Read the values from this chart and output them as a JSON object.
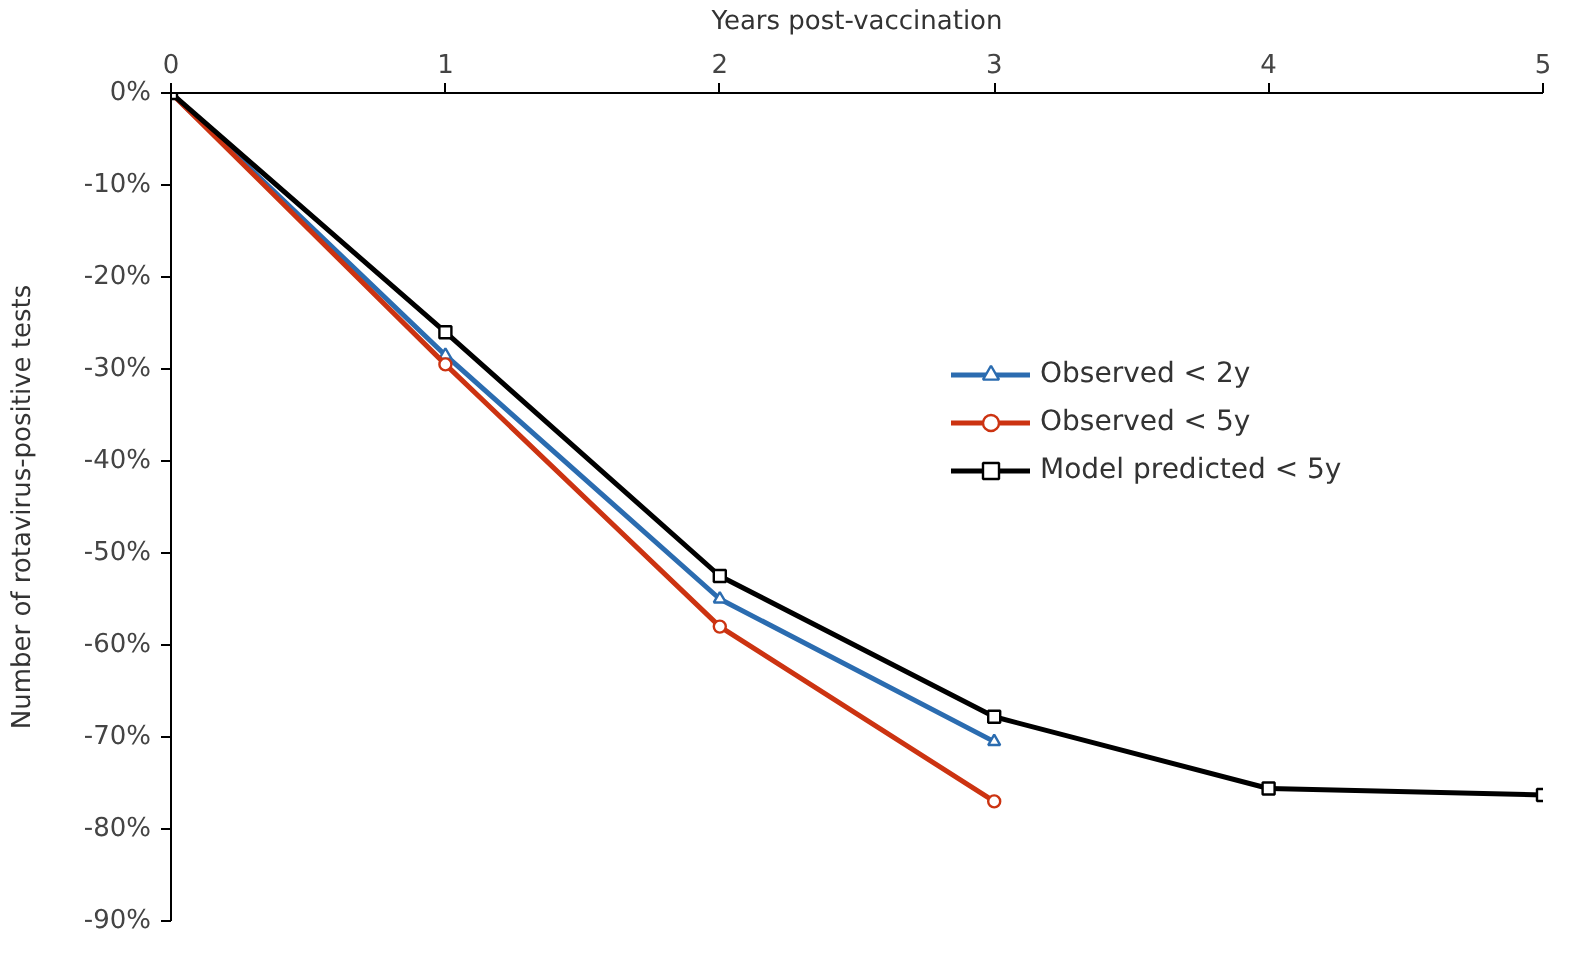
{
  "chart_data": {
    "type": "line",
    "xlabel": "Years post-vaccination",
    "ylabel": "Number of rotavirus-positive tests",
    "xlim": [
      0,
      5
    ],
    "xticks": [
      0,
      1,
      2,
      3,
      4,
      5
    ],
    "ylim": [
      -90,
      0
    ],
    "yticks": [
      {
        "value": 0,
        "label": "0%"
      },
      {
        "value": -10,
        "label": "-10%"
      },
      {
        "value": -20,
        "label": "-20%"
      },
      {
        "value": -30,
        "label": "-30%"
      },
      {
        "value": -40,
        "label": "-40%"
      },
      {
        "value": -50,
        "label": "-50%"
      },
      {
        "value": -60,
        "label": "-60%"
      },
      {
        "value": -70,
        "label": "-70%"
      },
      {
        "value": -80,
        "label": "-80%"
      },
      {
        "value": -90,
        "label": "-90%"
      }
    ],
    "grid": false,
    "legend": "top right",
    "line_style": "solid",
    "series": [
      {
        "name": "Observed < 2y",
        "color": "#2b6cb0",
        "marker": "triangle",
        "x": [
          0,
          1,
          2,
          3
        ],
        "values": [
          0,
          -28.5,
          -55,
          -70.5
        ]
      },
      {
        "name": "Observed < 5y",
        "color": "#cc3311",
        "marker": "circle",
        "x": [
          0,
          1,
          2,
          3
        ],
        "values": [
          0,
          -29.5,
          -58,
          -77
        ]
      },
      {
        "name": "Model predicted < 5y",
        "color": "#000000",
        "marker": "square",
        "x": [
          0,
          1,
          2,
          3,
          4,
          5
        ],
        "values": [
          0,
          -26,
          -52.5,
          -67.8,
          -75.6,
          -76.3
        ]
      }
    ]
  }
}
